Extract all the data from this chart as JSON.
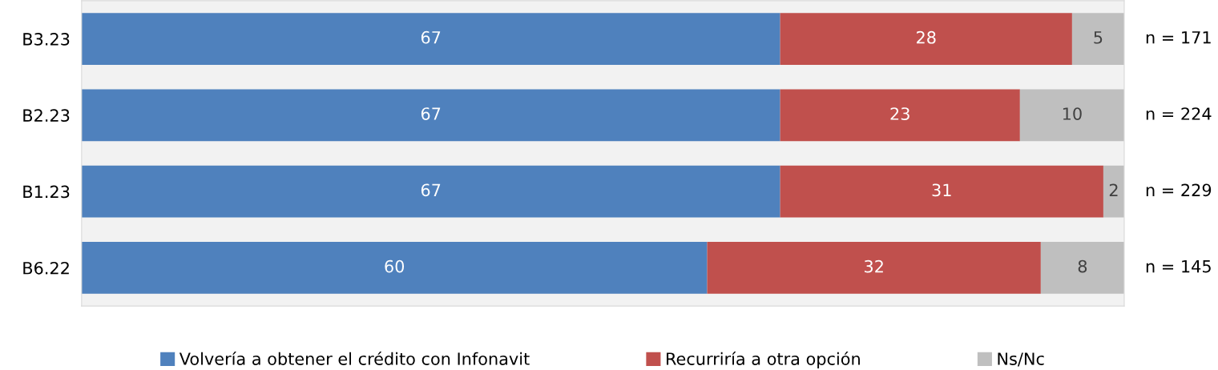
{
  "chart_data": {
    "type": "bar",
    "orientation": "horizontal",
    "stacked": true,
    "categories": [
      "B3.23",
      "B2.23",
      "B1.23",
      "B6.22"
    ],
    "series": [
      {
        "name": "Volvería a obtener el crédito con Infonavit",
        "color": "#4f81bd",
        "values": [
          67,
          67,
          67,
          60
        ]
      },
      {
        "name": "Recurriría a otra opción",
        "color": "#c0504d",
        "values": [
          28,
          23,
          31,
          32
        ]
      },
      {
        "name": "Ns/Nc",
        "color": "#bfbfbf",
        "values": [
          5,
          10,
          2,
          8
        ]
      }
    ],
    "xlim": [
      0,
      100
    ],
    "tick_labels": "y",
    "data_labels": true,
    "legend": "bottom",
    "grid": false,
    "annotations": [
      "n = 171",
      "n = 224",
      "n = 229",
      "n = 145"
    ]
  }
}
